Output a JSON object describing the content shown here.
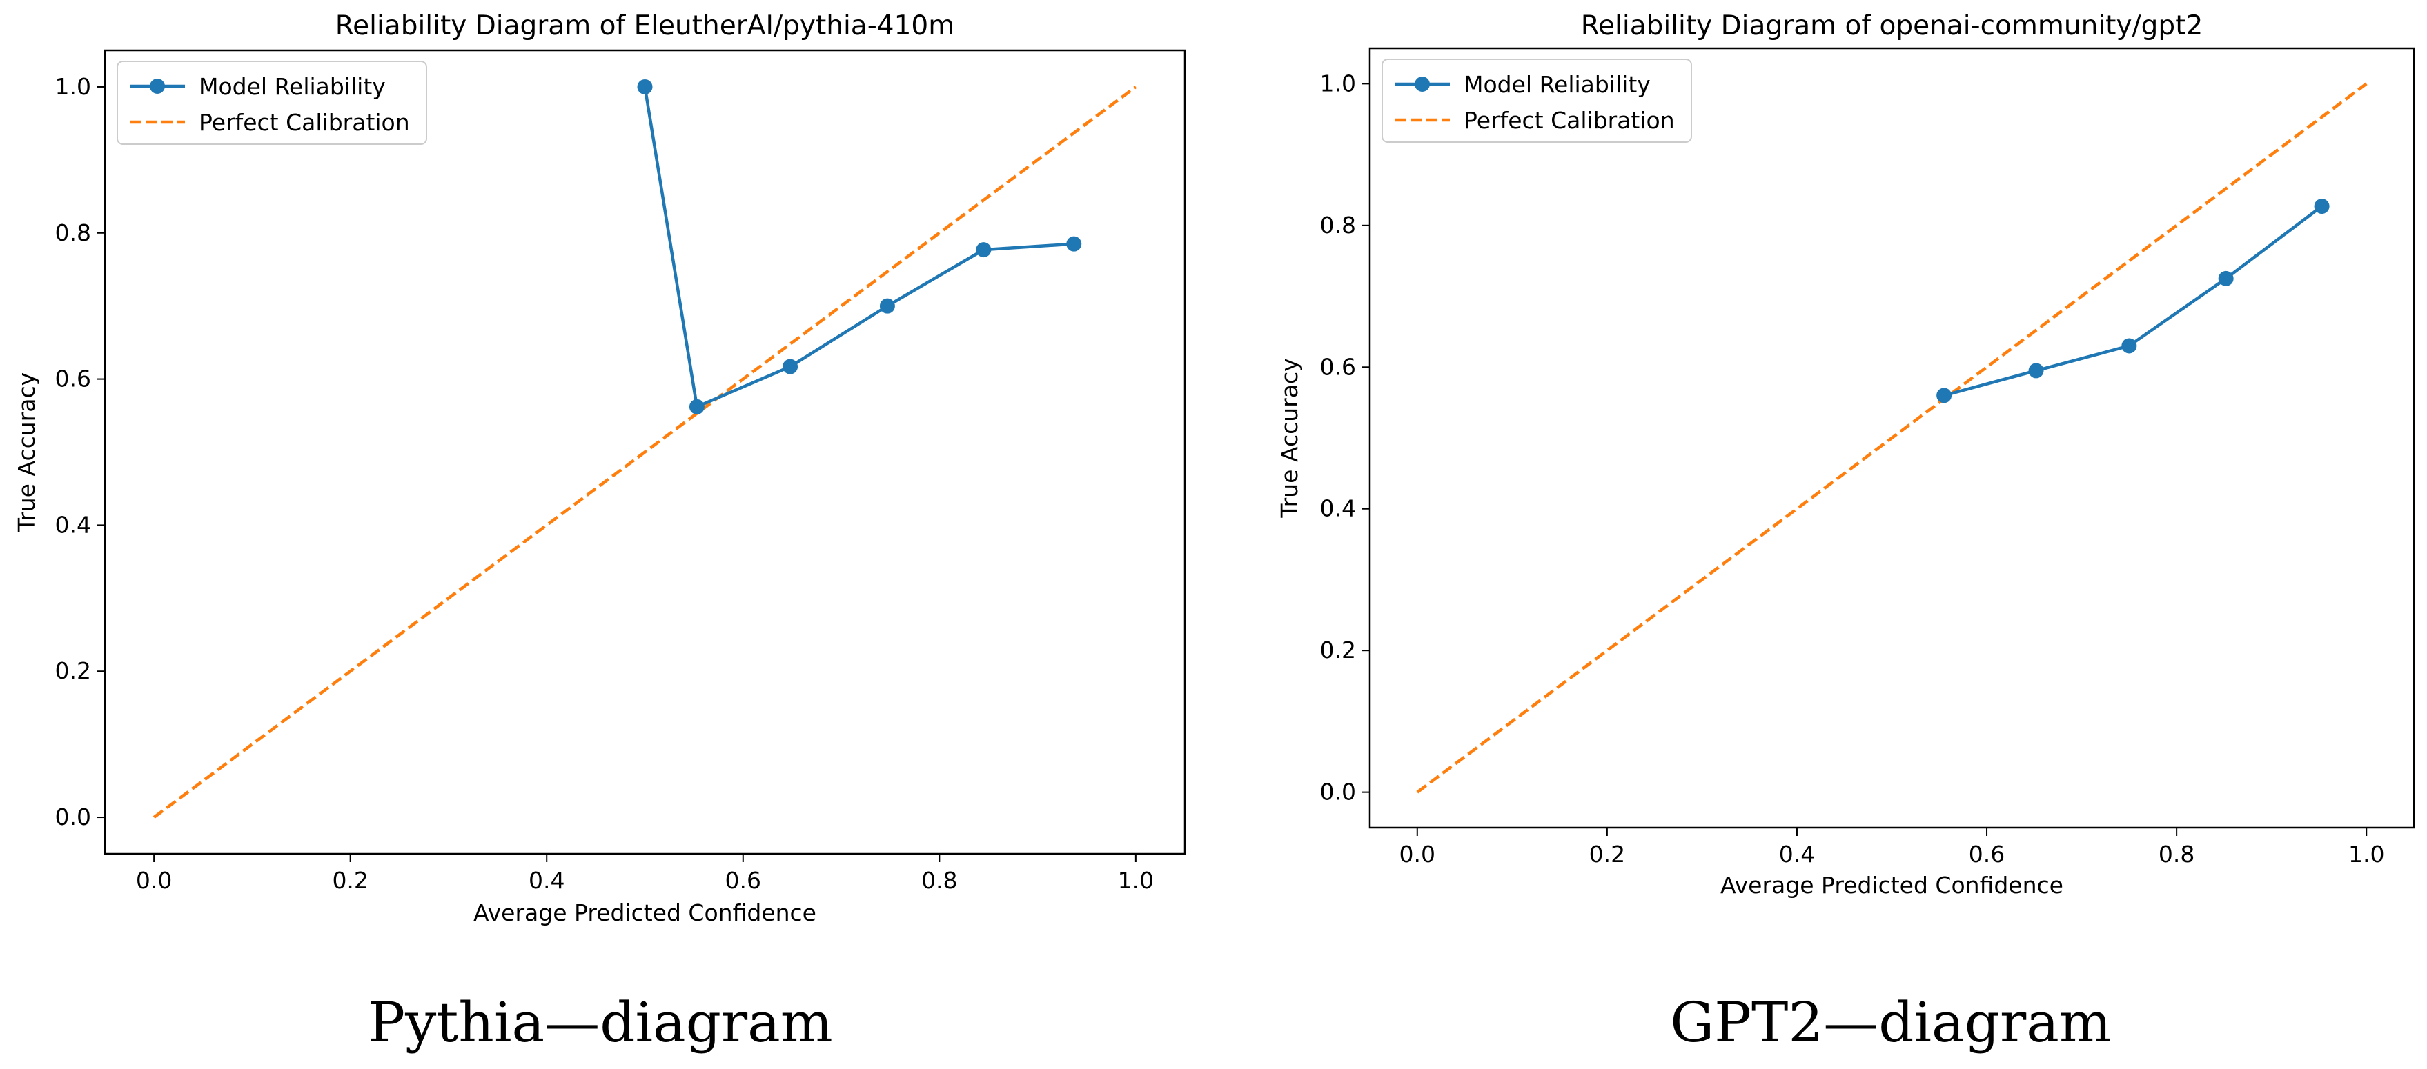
{
  "chart_data": [
    {
      "type": "line",
      "title": "Reliability Diagram of EleutherAI/pythia-410m",
      "xlabel": "Average Predicted Confidence",
      "ylabel": "True Accuracy",
      "xlim": [
        -0.05,
        1.05
      ],
      "ylim": [
        -0.05,
        1.05
      ],
      "xticks": [
        "0.0",
        "0.2",
        "0.4",
        "0.6",
        "0.8",
        "1.0"
      ],
      "yticks": [
        "0.0",
        "0.2",
        "0.4",
        "0.6",
        "0.8",
        "1.0"
      ],
      "grid": false,
      "legend_position": "top-left",
      "series": [
        {
          "name": "Model Reliability",
          "style": "solid-markers",
          "color": "#1f77b4",
          "x": [
            0.5,
            0.553,
            0.648,
            0.747,
            0.845,
            0.937
          ],
          "y": [
            1.0,
            0.562,
            0.617,
            0.7,
            0.777,
            0.785
          ]
        },
        {
          "name": "Perfect Calibration",
          "style": "dashed",
          "color": "#ff7f0e",
          "x": [
            0.0,
            1.0
          ],
          "y": [
            0.0,
            1.0
          ]
        }
      ],
      "caption": "Pythia—diagram"
    },
    {
      "type": "line",
      "title": "Reliability Diagram of openai-community/gpt2",
      "xlabel": "Average Predicted Confidence",
      "ylabel": "True Accuracy",
      "xlim": [
        -0.05,
        1.05
      ],
      "ylim": [
        -0.05,
        1.05
      ],
      "xticks": [
        "0.0",
        "0.2",
        "0.4",
        "0.6",
        "0.8",
        "1.0"
      ],
      "yticks": [
        "0.0",
        "0.2",
        "0.4",
        "0.6",
        "0.8",
        "1.0"
      ],
      "grid": false,
      "legend_position": "top-left",
      "series": [
        {
          "name": "Model Reliability",
          "style": "solid-markers",
          "color": "#1f77b4",
          "x": [
            0.555,
            0.652,
            0.75,
            0.852,
            0.953
          ],
          "y": [
            0.56,
            0.595,
            0.63,
            0.725,
            0.827
          ]
        },
        {
          "name": "Perfect Calibration",
          "style": "dashed",
          "color": "#ff7f0e",
          "x": [
            0.0,
            1.0
          ],
          "y": [
            0.0,
            1.0
          ]
        }
      ],
      "caption": "GPT2—diagram"
    }
  ]
}
